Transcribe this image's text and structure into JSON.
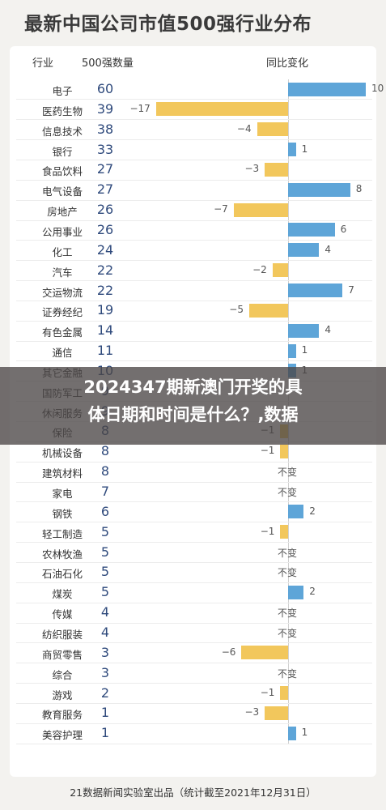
{
  "title": "最新中国公司市值500强行业分布",
  "headers": {
    "industry": "行业",
    "count": "500强数量",
    "change": "同比变化"
  },
  "overlay": {
    "line1": "2024347期新澳门开奖的具",
    "line2": "体日期和时间是什么？,数据"
  },
  "footer": "21数据新闻实验室出品（统计截至2021年12月31日）",
  "colors": {
    "increase": "#5ea5d8",
    "decrease": "#f2c75c",
    "count": "#2f4a7c"
  },
  "chart_data": {
    "type": "table",
    "unchanged_label": "不变",
    "rows": [
      {
        "industry": "电子",
        "count": 60,
        "change": 10,
        "change_label": "10"
      },
      {
        "industry": "医药生物",
        "count": 39,
        "change": -17,
        "change_label": "−17"
      },
      {
        "industry": "信息技术",
        "count": 38,
        "change": -4,
        "change_label": "−4"
      },
      {
        "industry": "银行",
        "count": 33,
        "change": 1,
        "change_label": "1"
      },
      {
        "industry": "食品饮料",
        "count": 27,
        "change": -3,
        "change_label": "−3"
      },
      {
        "industry": "电气设备",
        "count": 27,
        "change": 8,
        "change_label": "8"
      },
      {
        "industry": "房地产",
        "count": 26,
        "change": -7,
        "change_label": "−7"
      },
      {
        "industry": "公用事业",
        "count": 26,
        "change": 6,
        "change_label": "6"
      },
      {
        "industry": "化工",
        "count": 24,
        "change": 4,
        "change_label": "4"
      },
      {
        "industry": "汽车",
        "count": 22,
        "change": -2,
        "change_label": "−2"
      },
      {
        "industry": "交运物流",
        "count": 22,
        "change": 7,
        "change_label": "7"
      },
      {
        "industry": "证券经纪",
        "count": 19,
        "change": -5,
        "change_label": "−5"
      },
      {
        "industry": "有色金属",
        "count": 14,
        "change": 4,
        "change_label": "4"
      },
      {
        "industry": "通信",
        "count": 11,
        "change": 1,
        "change_label": "1"
      },
      {
        "industry": "其它金融",
        "count": 10,
        "change": 1,
        "change_label": "1"
      },
      {
        "industry": "国防军工",
        "count": 9,
        "change": 0,
        "change_label": ""
      },
      {
        "industry": "休闲服务",
        "count": 9,
        "change": 0,
        "change_label": ""
      },
      {
        "industry": "保险",
        "count": 8,
        "change": -1,
        "change_label": "−1"
      },
      {
        "industry": "机械设备",
        "count": 8,
        "change": -1,
        "change_label": "−1"
      },
      {
        "industry": "建筑材料",
        "count": 8,
        "change": 0,
        "change_label": "不变"
      },
      {
        "industry": "家电",
        "count": 7,
        "change": 0,
        "change_label": "不变"
      },
      {
        "industry": "钢铁",
        "count": 6,
        "change": 2,
        "change_label": "2"
      },
      {
        "industry": "轻工制造",
        "count": 5,
        "change": -1,
        "change_label": "−1"
      },
      {
        "industry": "农林牧渔",
        "count": 5,
        "change": 0,
        "change_label": "不变"
      },
      {
        "industry": "石油石化",
        "count": 5,
        "change": 0,
        "change_label": "不变"
      },
      {
        "industry": "煤炭",
        "count": 5,
        "change": 2,
        "change_label": "2"
      },
      {
        "industry": "传媒",
        "count": 4,
        "change": 0,
        "change_label": "不变"
      },
      {
        "industry": "纺织服装",
        "count": 4,
        "change": 0,
        "change_label": "不变"
      },
      {
        "industry": "商贸零售",
        "count": 3,
        "change": -6,
        "change_label": "−6"
      },
      {
        "industry": "综合",
        "count": 3,
        "change": 0,
        "change_label": "不变"
      },
      {
        "industry": "游戏",
        "count": 2,
        "change": -1,
        "change_label": "−1"
      },
      {
        "industry": "教育服务",
        "count": 1,
        "change": -3,
        "change_label": "−3"
      },
      {
        "industry": "美容护理",
        "count": 1,
        "change": 1,
        "change_label": "1"
      }
    ]
  }
}
